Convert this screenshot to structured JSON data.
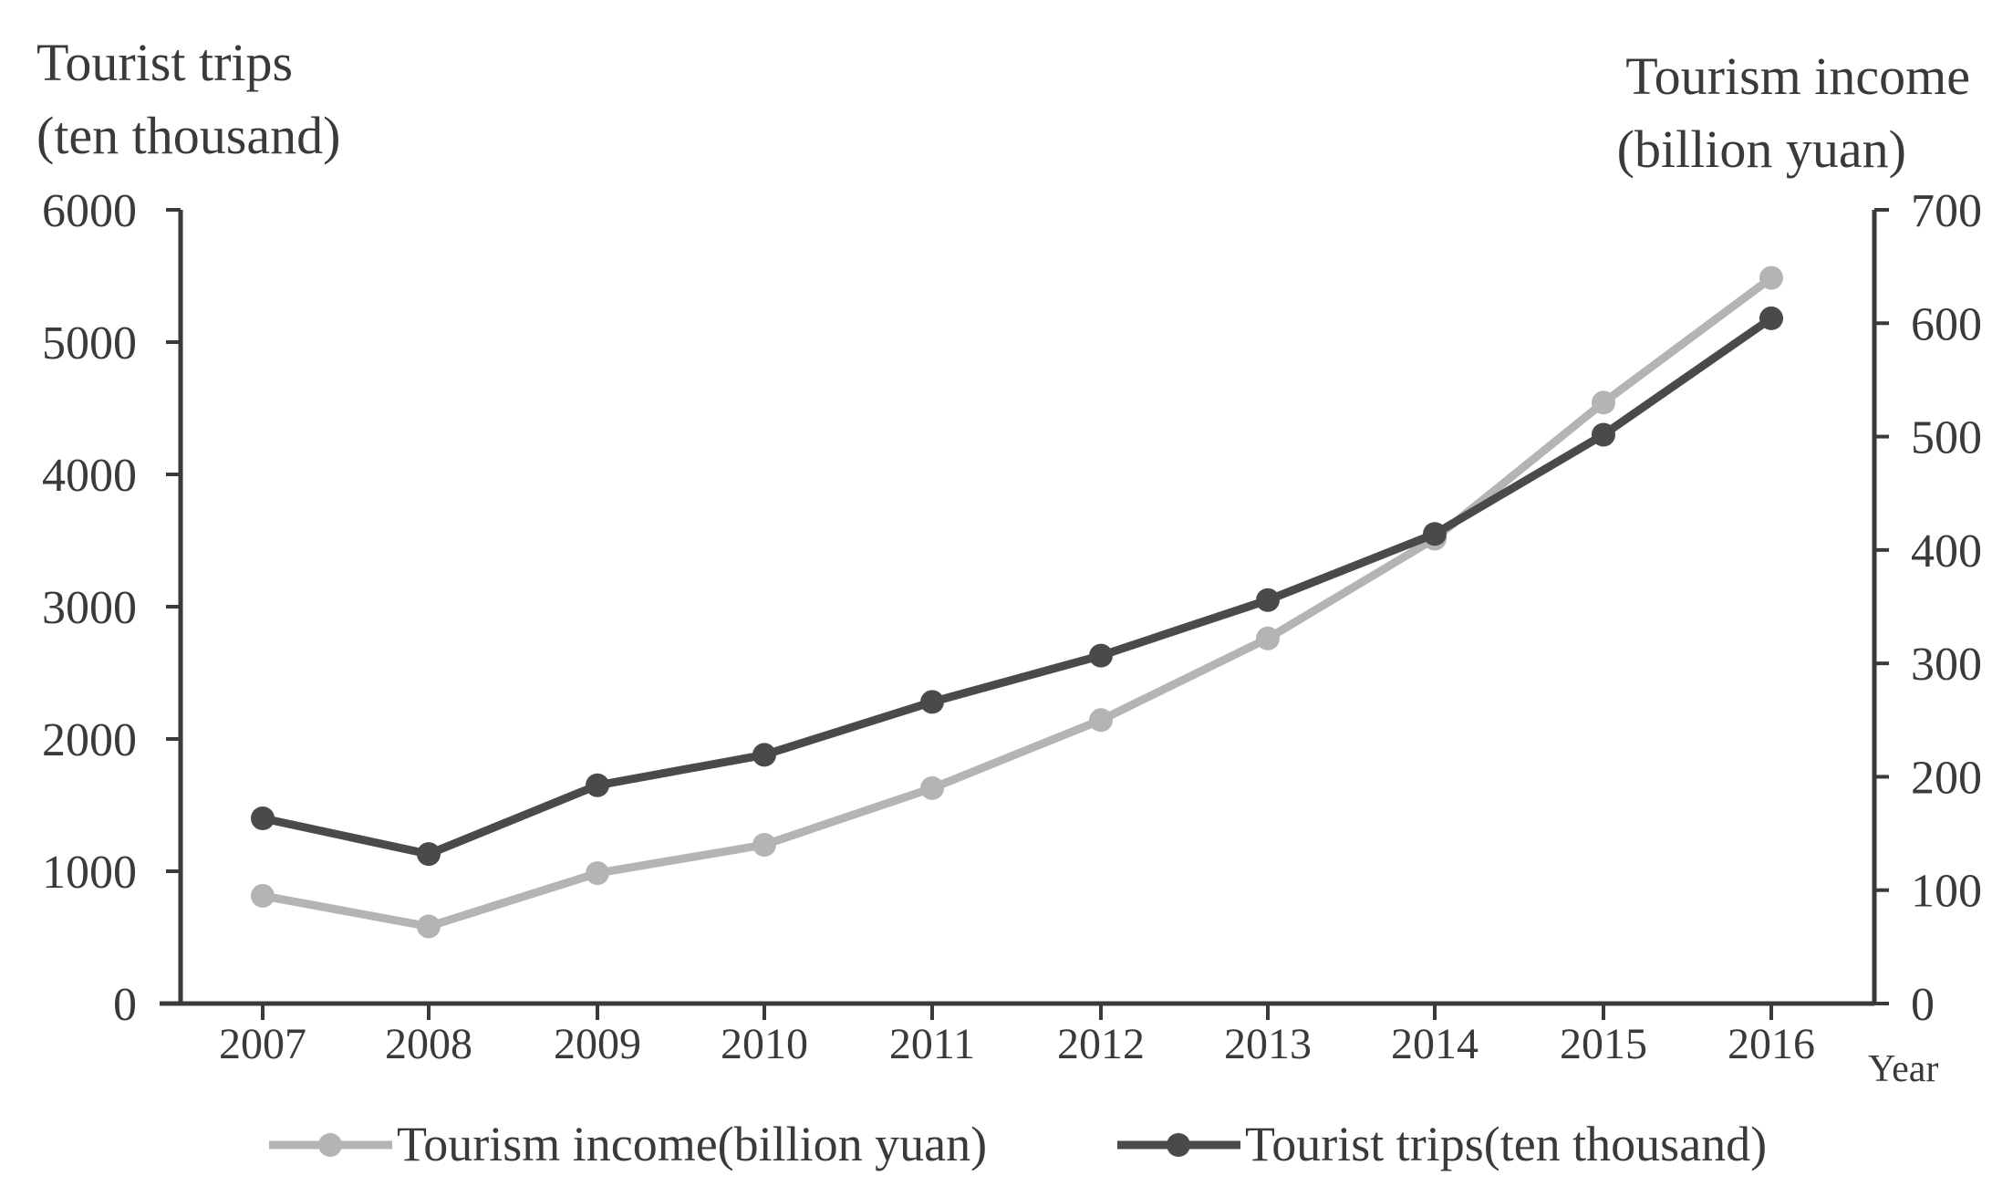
{
  "chart_data": {
    "type": "line",
    "x": [
      "2007",
      "2008",
      "2009",
      "2010",
      "2011",
      "2012",
      "2013",
      "2014",
      "2015",
      "2016"
    ],
    "xlabel": "Year",
    "y_left": {
      "label_line1": "Tourist trips",
      "label_line2": "(ten thousand)",
      "range": [
        0,
        6000
      ],
      "ticks": [
        "0",
        "1000",
        "2000",
        "3000",
        "4000",
        "5000",
        "6000"
      ]
    },
    "y_right": {
      "label_line1": "Tourism income",
      "label_line2": "(billion   yuan)",
      "range": [
        0,
        700
      ],
      "ticks": [
        "0",
        "100",
        "200",
        "300",
        "400",
        "500",
        "600",
        "700"
      ]
    },
    "series": [
      {
        "name": "Tourism income(billion yuan)",
        "axis": "right",
        "color": "#b4b4b4",
        "values": [
          95,
          68,
          115,
          140,
          190,
          250,
          322,
          410,
          530,
          640
        ]
      },
      {
        "name": "Tourist trips(ten thousand)",
        "axis": "left",
        "color": "#4a4a4a",
        "values": [
          1400,
          1130,
          1650,
          1880,
          2280,
          2630,
          3050,
          3550,
          4300,
          5180
        ]
      }
    ],
    "grid": false,
    "legend_position": "bottom"
  }
}
